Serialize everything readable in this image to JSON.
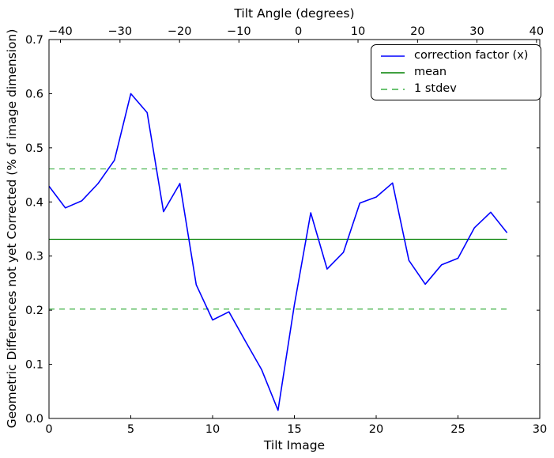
{
  "figure": {
    "background": "#ffffff",
    "frame_color": "#000000"
  },
  "chart_data": {
    "type": "line",
    "grid": false,
    "top_axis": {
      "title": "Tilt Angle (degrees)",
      "tick_labels": [
        "−40",
        "−30",
        "−20",
        "−10",
        "0",
        "10",
        "20",
        "30",
        "40"
      ],
      "tick_positions_in_bottom_units": [
        0.7,
        4.34,
        7.98,
        11.61,
        15.25,
        18.89,
        22.53,
        26.16,
        29.8
      ]
    },
    "bottom_axis": {
      "title": "Tilt Image",
      "ticks": [
        0,
        5,
        10,
        15,
        20,
        25,
        30
      ],
      "tick_labels": [
        "0",
        "5",
        "10",
        "15",
        "20",
        "25",
        "30"
      ],
      "range": [
        0,
        30
      ]
    },
    "left_axis": {
      "title": "Geometric Differences not yet Corrected (% of image dimension)",
      "ticks": [
        0,
        0.1,
        0.2,
        0.3,
        0.4,
        0.5,
        0.6,
        0.7
      ],
      "tick_labels": [
        "0.0",
        "0.1",
        "0.2",
        "0.3",
        "0.4",
        "0.5",
        "0.6",
        "0.7"
      ],
      "range": [
        0,
        0.7
      ]
    },
    "series": [
      {
        "name": "correction factor (x)",
        "kind": "line",
        "style": "solid",
        "color": "#0000ff",
        "x": [
          0,
          1,
          2,
          3,
          4,
          5,
          6,
          7,
          8,
          9,
          10,
          11,
          12,
          13,
          14,
          15,
          16,
          17,
          18,
          19,
          20,
          21,
          22,
          23,
          24,
          25,
          26,
          27,
          28
        ],
        "values": [
          0.429,
          0.389,
          0.402,
          0.434,
          0.477,
          0.6,
          0.565,
          0.382,
          0.434,
          0.247,
          0.182,
          0.197,
          0.143,
          0.09,
          0.015,
          0.21,
          0.38,
          0.276,
          0.307,
          0.398,
          0.409,
          0.435,
          0.292,
          0.248,
          0.284,
          0.296,
          0.352,
          0.381,
          0.343
        ]
      },
      {
        "name": "mean",
        "kind": "hline",
        "style": "solid",
        "color": "#008000",
        "value": 0.331,
        "x_range": [
          0,
          28
        ]
      },
      {
        "name": "1 stdev",
        "kind": "hline",
        "style": "dashed",
        "color": "#3cb043",
        "values": [
          0.461,
          0.202
        ],
        "x_range": [
          0,
          28
        ]
      }
    ],
    "legend": {
      "position": "upper right"
    }
  }
}
